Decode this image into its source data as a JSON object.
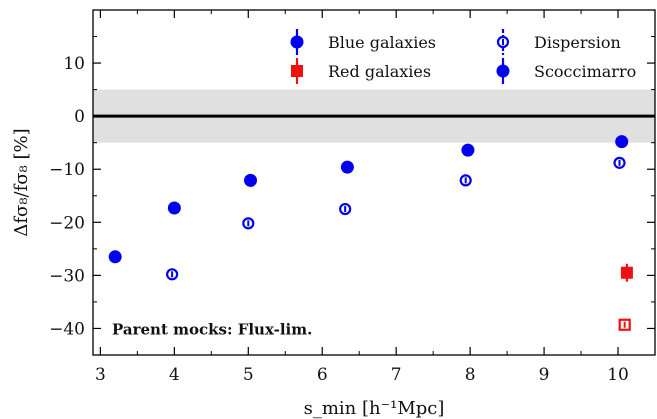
{
  "chart_data": {
    "type": "scatter",
    "xlabel": "s_min [h⁻¹Mpc]",
    "ylabel": "Δfσ₈/fσ₈ [%]",
    "xlim": [
      2.9,
      10.5
    ],
    "ylim": [
      -45,
      20
    ],
    "xticks": [
      3,
      4,
      5,
      6,
      7,
      8,
      9,
      10
    ],
    "yticks": [
      -40,
      -30,
      -20,
      -10,
      0,
      10
    ],
    "reference_line": 0,
    "reference_band": [
      -5,
      5
    ],
    "annotation": "Parent mocks: Flux-lim.",
    "legend_position": "top-right",
    "series": [
      {
        "name": "Blue galaxies",
        "label": "Blue galaxies",
        "group": "Scoccimarro",
        "color": "#0000ee",
        "marker": "circle-filled",
        "points": [
          {
            "x": 3.2,
            "y": -26.5
          },
          {
            "x": 4.0,
            "y": -17.3
          },
          {
            "x": 5.03,
            "y": -12.1
          },
          {
            "x": 6.34,
            "y": -9.6
          },
          {
            "x": 7.97,
            "y": -6.4
          },
          {
            "x": 10.05,
            "y": -4.8
          }
        ]
      },
      {
        "name": "Red galaxies",
        "label": "Red galaxies",
        "group": "Scoccimarro",
        "color": "#ee1111",
        "marker": "square-filled",
        "points": [
          {
            "x": 10.12,
            "y": -29.5,
            "err": 1.5
          }
        ]
      },
      {
        "name": "Blue galaxies",
        "label": "Dispersion",
        "group": "Dispersion",
        "color": "#0000ee",
        "marker": "circle-open",
        "points": [
          {
            "x": 3.97,
            "y": -29.8
          },
          {
            "x": 5.0,
            "y": -20.2
          },
          {
            "x": 6.31,
            "y": -17.5
          },
          {
            "x": 7.94,
            "y": -12.1
          },
          {
            "x": 10.02,
            "y": -8.8
          }
        ]
      },
      {
        "name": "Red galaxies",
        "label": "Dispersion",
        "group": "Dispersion",
        "color": "#ee1111",
        "marker": "square-open",
        "points": [
          {
            "x": 10.09,
            "y": -39.3,
            "err": 0.8
          }
        ]
      }
    ],
    "legend": [
      {
        "label": "Blue galaxies",
        "color": "#0000ee",
        "marker": "circle-filled"
      },
      {
        "label": "Red galaxies",
        "color": "#ee1111",
        "marker": "square-filled"
      },
      {
        "label": "Dispersion",
        "color": "#0000ee",
        "marker": "circle-open"
      },
      {
        "label": "Scoccimarro",
        "color": "#0000ee",
        "marker": "circle-filled"
      }
    ]
  }
}
